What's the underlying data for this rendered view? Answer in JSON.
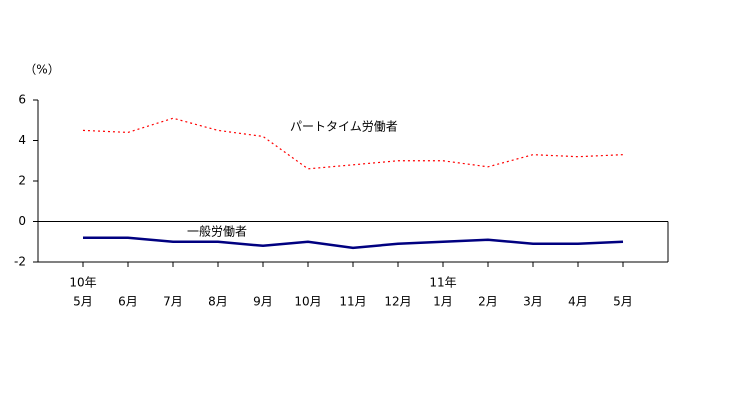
{
  "chart_data": {
    "type": "line",
    "y_unit": "（%）",
    "categories": [
      "5月",
      "6月",
      "7月",
      "8月",
      "9月",
      "10月",
      "11月",
      "12月",
      "1月",
      "2月",
      "3月",
      "4月",
      "5月"
    ],
    "category_groups": [
      "10年",
      null,
      null,
      null,
      null,
      null,
      null,
      null,
      "11年",
      null,
      null,
      null,
      null
    ],
    "series": [
      {
        "name": "パートタイム労働者",
        "color": "#ff0000",
        "dash": "dotted",
        "values": [
          4.5,
          4.4,
          5.1,
          4.5,
          4.2,
          2.6,
          2.8,
          3.0,
          3.0,
          2.7,
          3.3,
          3.2,
          3.3
        ]
      },
      {
        "name": "一般労働者",
        "color": "#000080",
        "dash": "solid",
        "values": [
          -0.8,
          -0.8,
          -1.0,
          -1.0,
          -1.2,
          -1.0,
          -1.3,
          -1.1,
          -1.0,
          -0.9,
          -1.1,
          -1.1,
          -1.0
        ]
      }
    ],
    "ylim": [
      -2,
      6
    ],
    "yticks": [
      -2,
      0,
      2,
      4,
      6
    ]
  }
}
